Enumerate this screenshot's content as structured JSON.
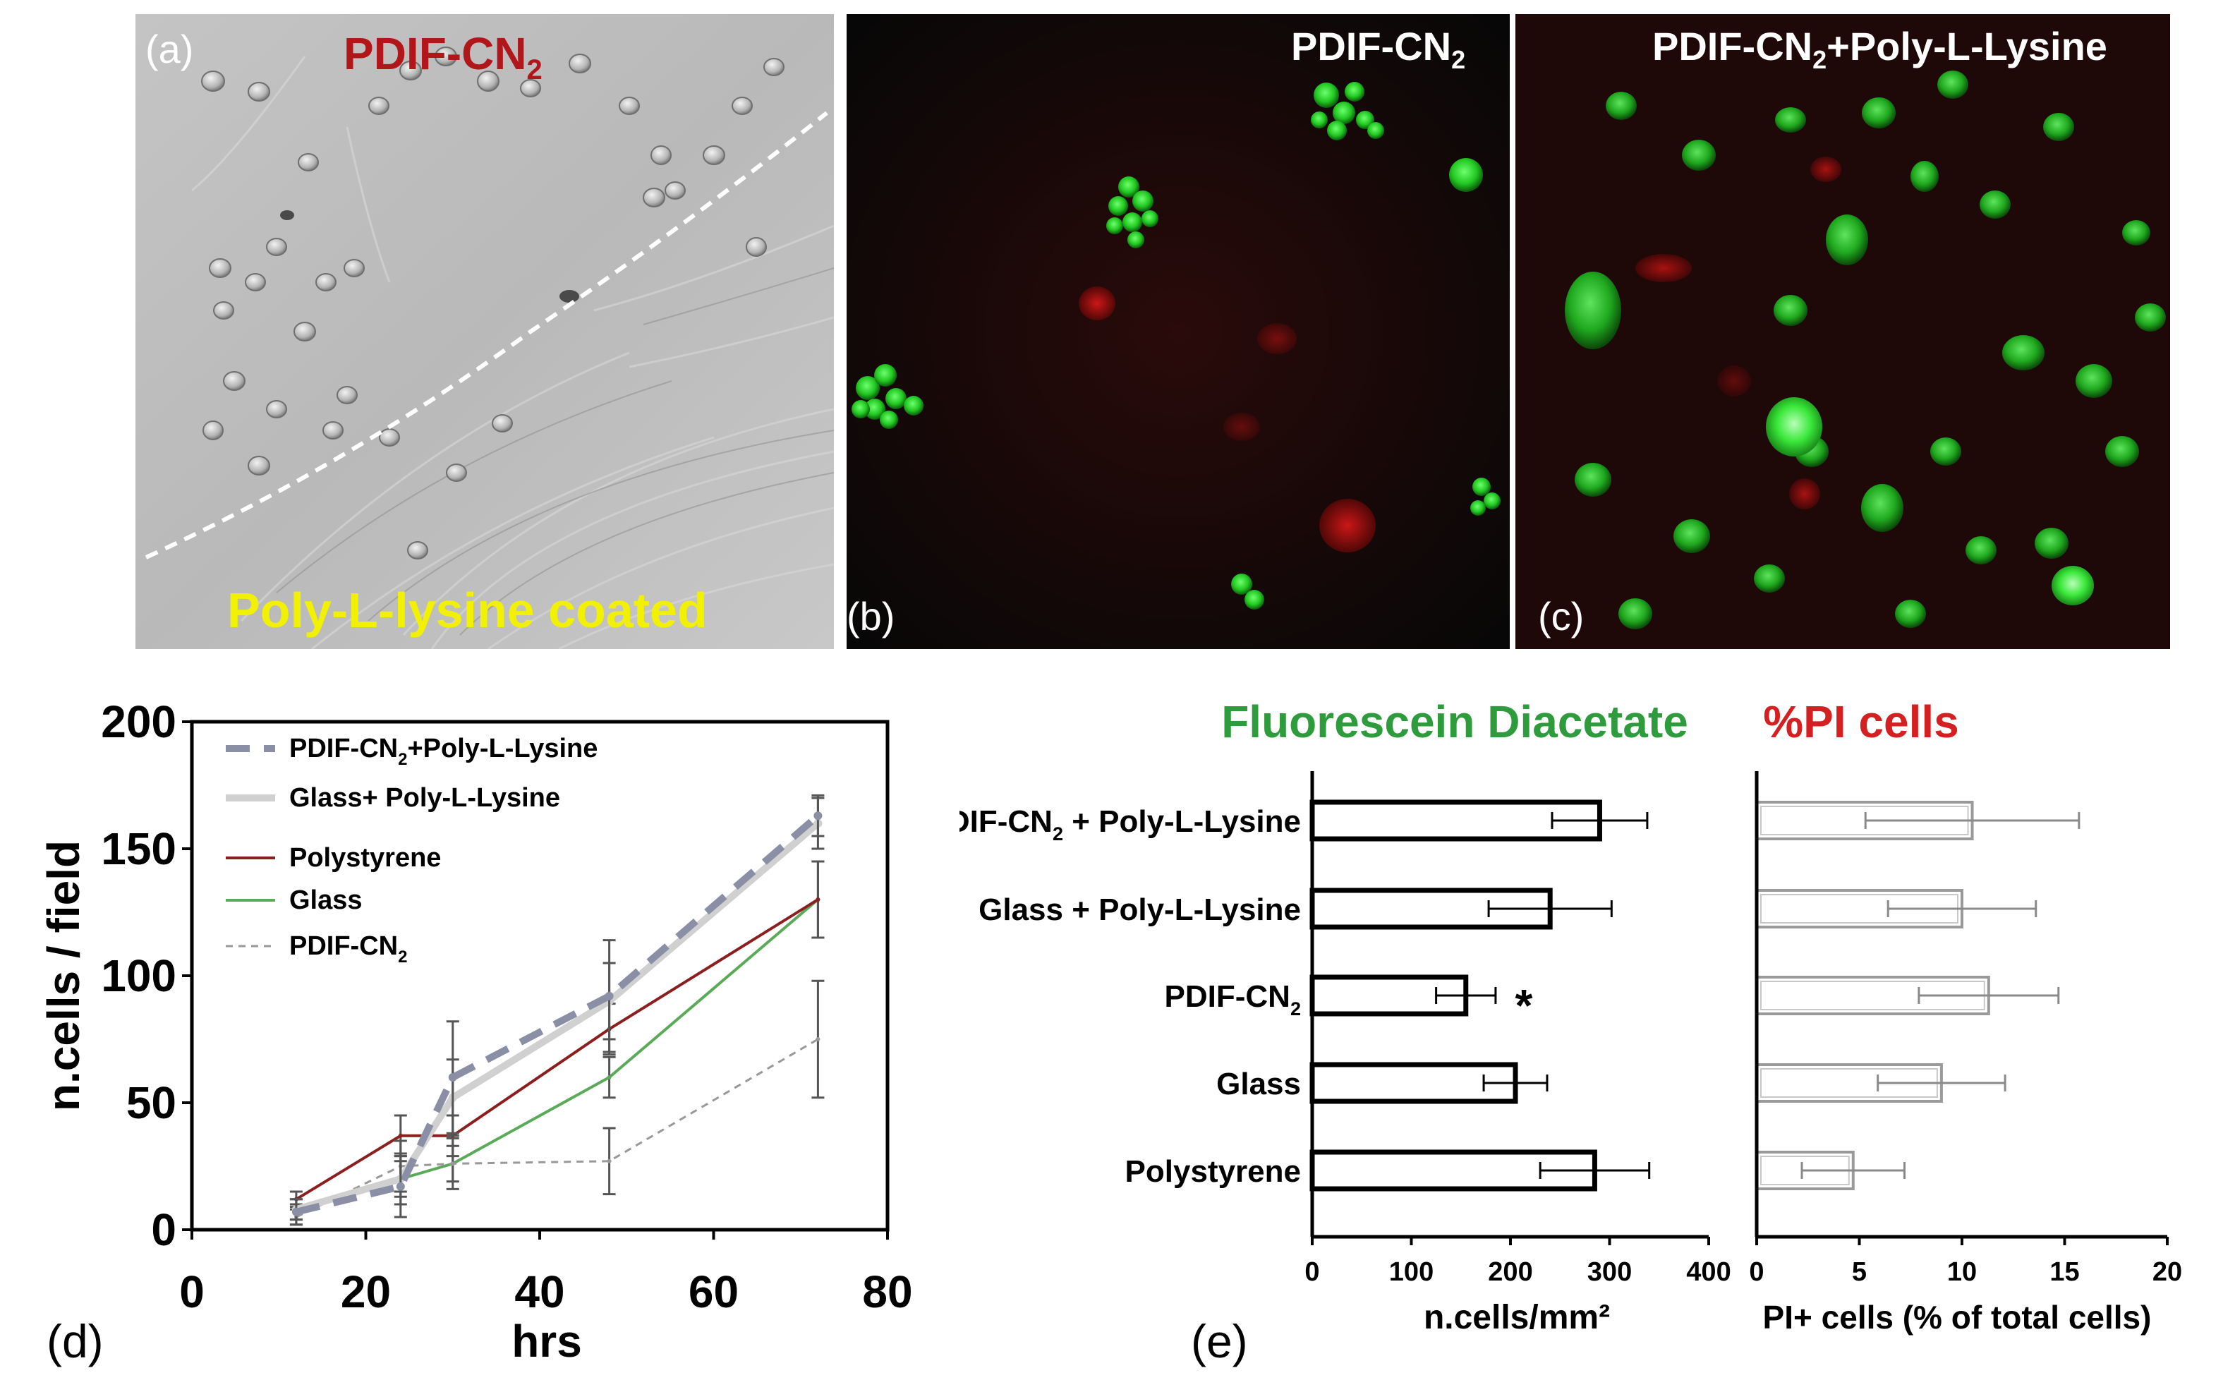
{
  "panel_a": {
    "letter": "(a)",
    "top_label": "PDIF-CN",
    "top_label_sub": "2",
    "bottom_label": "Poly-L-lysine coated",
    "top_color": "#b0161a",
    "bottom_color": "#f2f200"
  },
  "panel_b": {
    "letter": "(b)",
    "title": "PDIF-CN",
    "title_sub": "2"
  },
  "panel_c": {
    "letter": "(c)",
    "title_pre": "PDIF-CN",
    "title_sub": "2",
    "title_post": "+Poly-L-Lysine"
  },
  "panel_d_letter": "(d)",
  "panel_e_letter": "(e)",
  "chart_data": [
    {
      "type": "line",
      "xlabel": "hrs",
      "ylabel": "n.cells / field",
      "xlim": [
        0,
        80
      ],
      "ylim": [
        0,
        200
      ],
      "x_ticks": [
        "0",
        "20",
        "40",
        "60",
        "80"
      ],
      "y_ticks": [
        "0",
        "50",
        "100",
        "150",
        "200"
      ],
      "x": [
        12,
        24,
        30,
        48,
        72
      ],
      "legend_position": "top-left",
      "series": [
        {
          "name_pre": "PDIF-CN",
          "name_sub": "2",
          "name_post": "+Poly-L-Lysine",
          "values": [
            7,
            17,
            60,
            92,
            163
          ],
          "error": [
            5,
            12,
            22,
            22,
            8
          ],
          "color": "#8a8fa6",
          "style": "dashed-thick"
        },
        {
          "name": "Glass+ Poly-L-Lysine",
          "values": [
            8,
            20,
            52,
            90,
            160
          ],
          "error": [
            4,
            10,
            15,
            15,
            10
          ],
          "color": "#d0d0d0",
          "style": "solid-thick"
        },
        {
          "name": "Polystyrene",
          "values": [
            12,
            37,
            37,
            79,
            130
          ],
          "error": [
            3,
            8,
            8,
            10,
            15
          ],
          "color": "#8b1f1f",
          "style": "solid"
        },
        {
          "name": "Glass",
          "values": [
            7,
            20,
            26,
            60,
            130
          ],
          "error": [
            3,
            7,
            7,
            8,
            15
          ],
          "color": "#5aaa5a",
          "style": "solid"
        },
        {
          "name_pre": "PDIF-CN",
          "name_sub": "2",
          "name_post": "",
          "values": [
            5,
            25,
            26,
            27,
            75
          ],
          "error": [
            3,
            10,
            10,
            13,
            23
          ],
          "color": "#999999",
          "style": "dotted"
        }
      ]
    },
    {
      "type": "bar",
      "orientation": "horizontal",
      "title": "Fluorescein Diacetate",
      "title_color": "#2e9b3c",
      "xlabel": "n.cells/mm²",
      "xlim": [
        0,
        400
      ],
      "x_ticks": [
        "0",
        "100",
        "200",
        "300",
        "400"
      ],
      "categories": [
        {
          "pre": "PDIF-CN",
          "sub": "2",
          "post": " + Poly-L-Lysine"
        },
        {
          "pre": "Glass + Poly-L-Lysine",
          "sub": "",
          "post": ""
        },
        {
          "pre": "PDIF-CN",
          "sub": "2",
          "post": ""
        },
        {
          "pre": "Glass",
          "sub": "",
          "post": ""
        },
        {
          "pre": "Polystyrene",
          "sub": "",
          "post": ""
        }
      ],
      "values": [
        290,
        240,
        155,
        205,
        285
      ],
      "error": [
        48,
        62,
        30,
        32,
        55
      ],
      "annotations": [
        {
          "category_index": 2,
          "text": "*"
        }
      ]
    },
    {
      "type": "bar",
      "orientation": "horizontal",
      "title": "%PI cells",
      "title_color": "#d42020",
      "xlabel": "PI+ cells (% of total cells)",
      "xlim": [
        0,
        20
      ],
      "x_ticks": [
        "0",
        "5",
        "10",
        "15",
        "20"
      ],
      "values": [
        10.5,
        10.0,
        11.3,
        9.0,
        4.7
      ],
      "error": [
        5.2,
        3.6,
        3.4,
        3.1,
        2.5
      ]
    }
  ]
}
